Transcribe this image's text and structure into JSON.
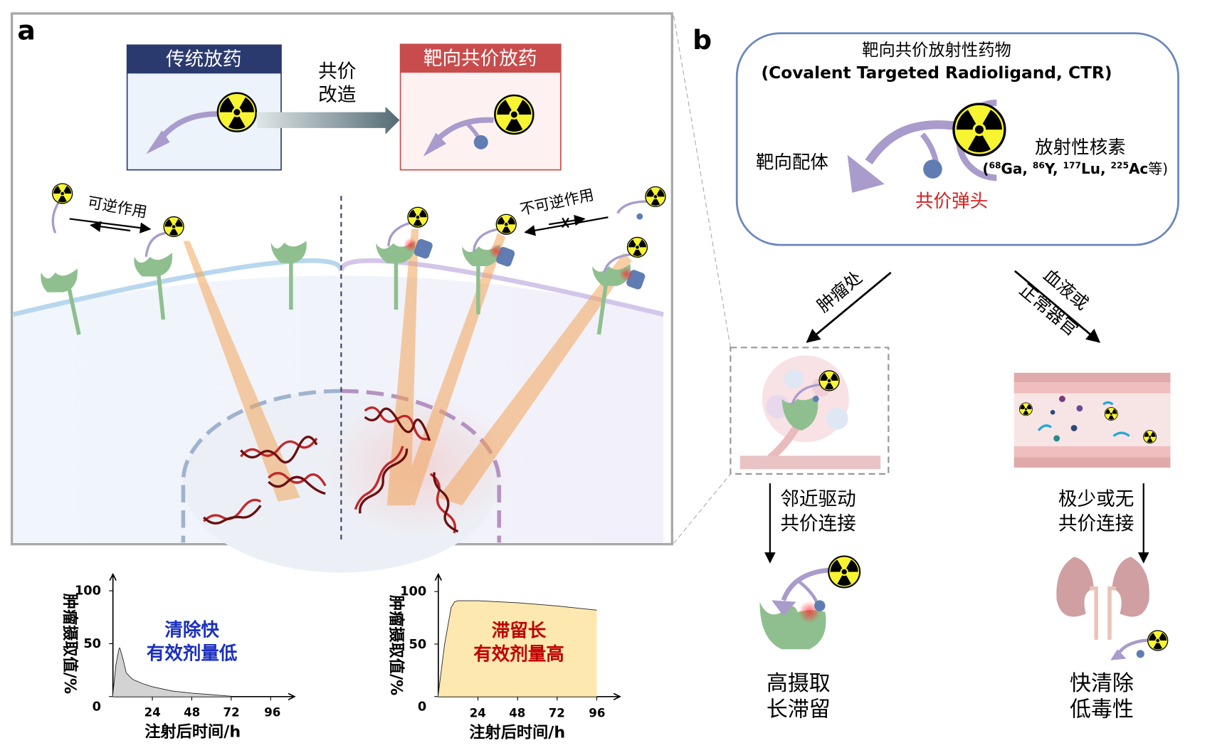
{
  "panel_a": {
    "label": "a",
    "conventional_box_title": "传统放药",
    "covalent_box_title": "靶向共价放药",
    "transform_label_line1": "共价",
    "transform_label_line2": "改造",
    "reversible_label": "可逆作用",
    "irreversible_label": "不可逆作用",
    "colors": {
      "conventional_header": "#2b3a6e",
      "covalent_header": "#c94c4c",
      "beam": "#f2a55a",
      "receptor": "#8fbf8f",
      "ligand": "#a99bcb",
      "warhead": "#5f7db3"
    }
  },
  "panel_b": {
    "label": "b",
    "ctr_title_cn": "靶向共价放射性药物",
    "ctr_title_en": "(Covalent Targeted Radioligand, CTR)",
    "ligand_label": "靶向配体",
    "warhead_label": "共价弹头",
    "nuclide_label": "放射性核素",
    "nuclide_examples": {
      "open": "(",
      "ga_mass": "68",
      "ga": "Ga, ",
      "y_mass": "86",
      "y": "Y, ",
      "lu_mass": "177",
      "lu": "Lu, ",
      "ac_mass": "225",
      "ac": "Ac",
      "etc": "等)"
    },
    "tumor_path_label": "肿瘤处",
    "normal_path_label_line1": "血液或",
    "normal_path_label_line2": "正常器官",
    "tumor_step_line1": "邻近驱动",
    "tumor_step_line2": "共价连接",
    "normal_step_line1": "极少或无",
    "normal_step_line2": "共价连接",
    "tumor_outcome_line1": "高摄取",
    "tumor_outcome_line2": "长滞留",
    "normal_outcome_line1": "快清除",
    "normal_outcome_line2": "低毒性",
    "colors": {
      "warhead_label": "#d42020",
      "ctr_box_border": "#6a86c0"
    }
  },
  "chart_data": [
    {
      "type": "area",
      "title": "",
      "annotation_line1": "清除快",
      "annotation_line2": "有效剂量低",
      "annotation_color": "#1a2fc0",
      "fill_color": "#d3d3d3",
      "xlabel": "注射后时间/h",
      "ylabel": "肿瘤摄取值/%",
      "xlim": [
        0,
        105
      ],
      "ylim": [
        0,
        110
      ],
      "xticks": [
        "24",
        "48",
        "72",
        "96"
      ],
      "yticks": [
        "0",
        "50",
        "100"
      ],
      "x": [
        0,
        2,
        4,
        6,
        8,
        12,
        18,
        24,
        36,
        48,
        60,
        72
      ],
      "y": [
        0,
        30,
        46,
        35,
        22,
        16,
        12,
        9,
        5,
        3,
        1.5,
        0
      ]
    },
    {
      "type": "area",
      "title": "",
      "annotation_line1": "滞留长",
      "annotation_line2": "有效剂量高",
      "annotation_color": "#c00000",
      "fill_color": "#fde8b0",
      "xlabel": "注射后时间/h",
      "ylabel": "肿瘤摄取值/%",
      "xlim": [
        0,
        105
      ],
      "ylim": [
        0,
        110
      ],
      "xticks": [
        "24",
        "48",
        "72",
        "96"
      ],
      "yticks": [
        "0",
        "50",
        "100"
      ],
      "x": [
        0,
        4,
        8,
        10,
        12,
        24,
        48,
        72,
        96
      ],
      "y": [
        0,
        50,
        85,
        90,
        91,
        91,
        89,
        86,
        82
      ]
    }
  ]
}
